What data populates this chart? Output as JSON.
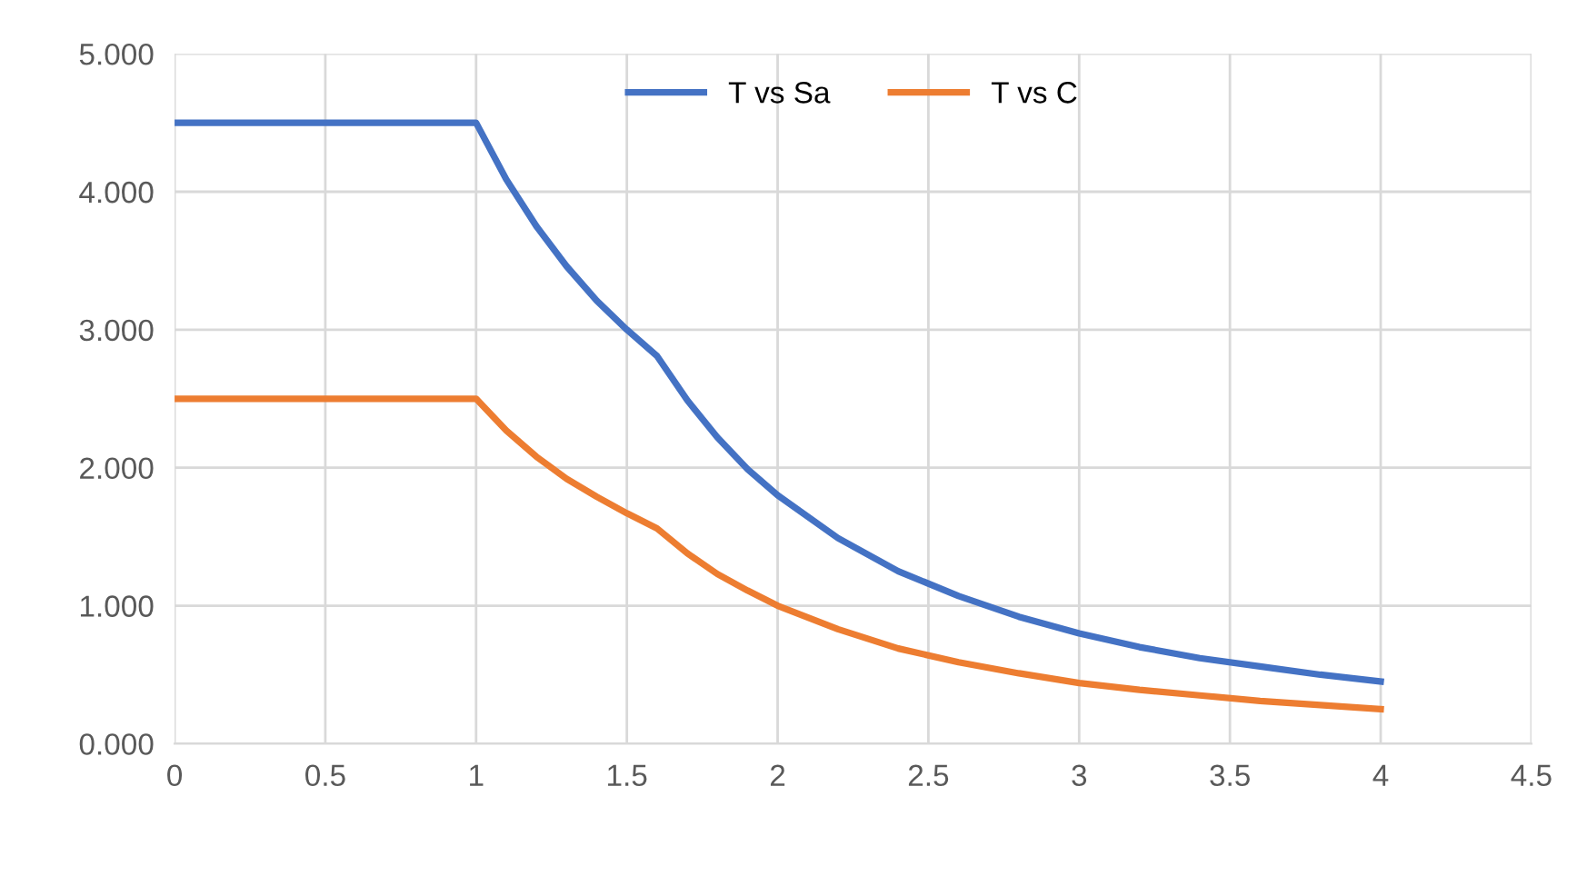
{
  "chart_data": {
    "type": "line",
    "x": [
      0,
      0.5,
      1,
      1.1,
      1.2,
      1.3,
      1.4,
      1.5,
      1.6,
      1.7,
      1.8,
      1.9,
      2,
      2.2,
      2.4,
      2.6,
      2.8,
      3,
      3.2,
      3.4,
      3.6,
      3.8,
      4
    ],
    "series": [
      {
        "name": "T vs Sa",
        "color": "#4472c4",
        "values": [
          4.5,
          4.5,
          4.5,
          4.09,
          3.75,
          3.46,
          3.21,
          3.0,
          2.81,
          2.49,
          2.22,
          1.99,
          1.8,
          1.49,
          1.25,
          1.07,
          0.92,
          0.8,
          0.7,
          0.62,
          0.56,
          0.5,
          0.45
        ]
      },
      {
        "name": "T vs C",
        "color": "#ed7d31",
        "values": [
          2.5,
          2.5,
          2.5,
          2.27,
          2.08,
          1.92,
          1.79,
          1.67,
          1.56,
          1.38,
          1.23,
          1.11,
          1.0,
          0.83,
          0.69,
          0.59,
          0.51,
          0.44,
          0.39,
          0.35,
          0.31,
          0.28,
          0.25
        ]
      }
    ],
    "xlim": [
      0,
      4.5
    ],
    "xticks": [
      0,
      0.5,
      1,
      1.5,
      2,
      2.5,
      3,
      3.5,
      4,
      4.5
    ],
    "ylim": [
      0,
      5
    ],
    "yticks": [
      {
        "value": 0,
        "label": "0.000"
      },
      {
        "value": 1,
        "label": "1.000"
      },
      {
        "value": 2,
        "label": "2.000"
      },
      {
        "value": 3,
        "label": "3.000"
      },
      {
        "value": 4,
        "label": "4.000"
      },
      {
        "value": 5,
        "label": "5.000"
      }
    ],
    "grid": true,
    "legend": "top",
    "marker": "none",
    "line_style": "solid"
  }
}
